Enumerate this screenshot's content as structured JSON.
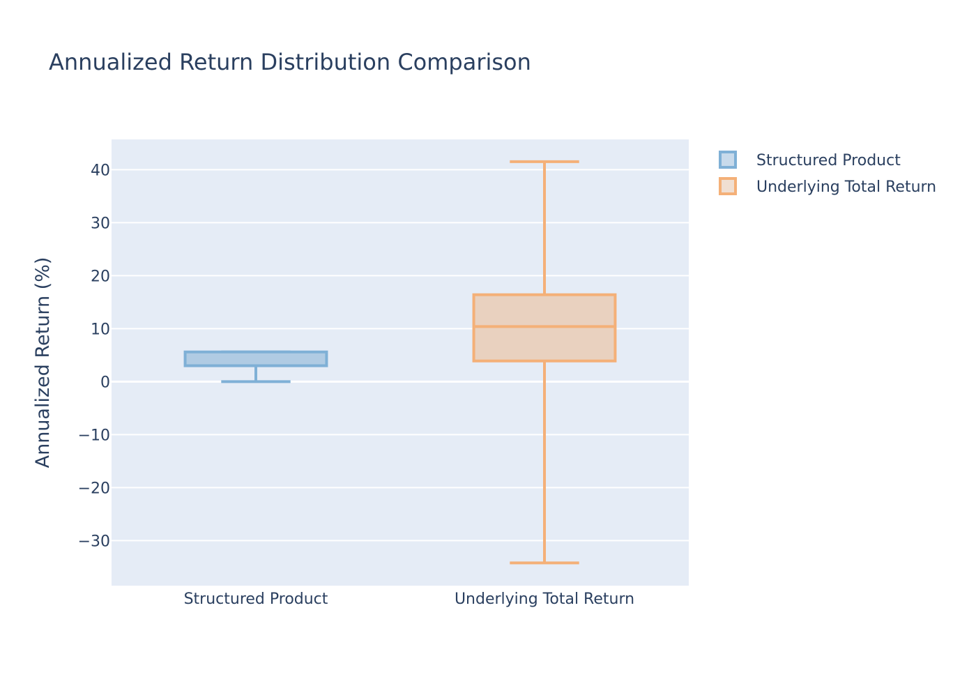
{
  "chart_data": {
    "type": "box",
    "title": "Annualized Return Distribution Comparison",
    "xlabel": "",
    "ylabel": "Annualized Return (%)",
    "ylim": [
      -38.5,
      45.7
    ],
    "yticks": [
      40,
      30,
      20,
      10,
      0,
      -10,
      -20,
      -30
    ],
    "ytick_labels": [
      "40",
      "30",
      "20",
      "10",
      "0",
      "−10",
      "−20",
      "−30"
    ],
    "categories": [
      "Structured Product",
      "Underlying Total Return"
    ],
    "grid": true,
    "legend_position": "top-right",
    "series": [
      {
        "name": "Structured Product",
        "category": "Structured Product",
        "color": "#7fb0d6",
        "fill": "#b0cbe3",
        "lower_whisker": 0,
        "q1": 3,
        "median": 3,
        "q3": 5.6,
        "upper_whisker": 5.6
      },
      {
        "name": "Underlying Total Return",
        "category": "Underlying Total Return",
        "color": "#f4b078",
        "fill": "#e9d1bf",
        "lower_whisker": -34.2,
        "q1": 3.9,
        "median": 10.4,
        "q3": 16.4,
        "upper_whisker": 41.5
      }
    ]
  },
  "colors": {
    "plot_background": "#e5ecf6",
    "grid": "#ffffff",
    "text": "#2a3f5f"
  }
}
